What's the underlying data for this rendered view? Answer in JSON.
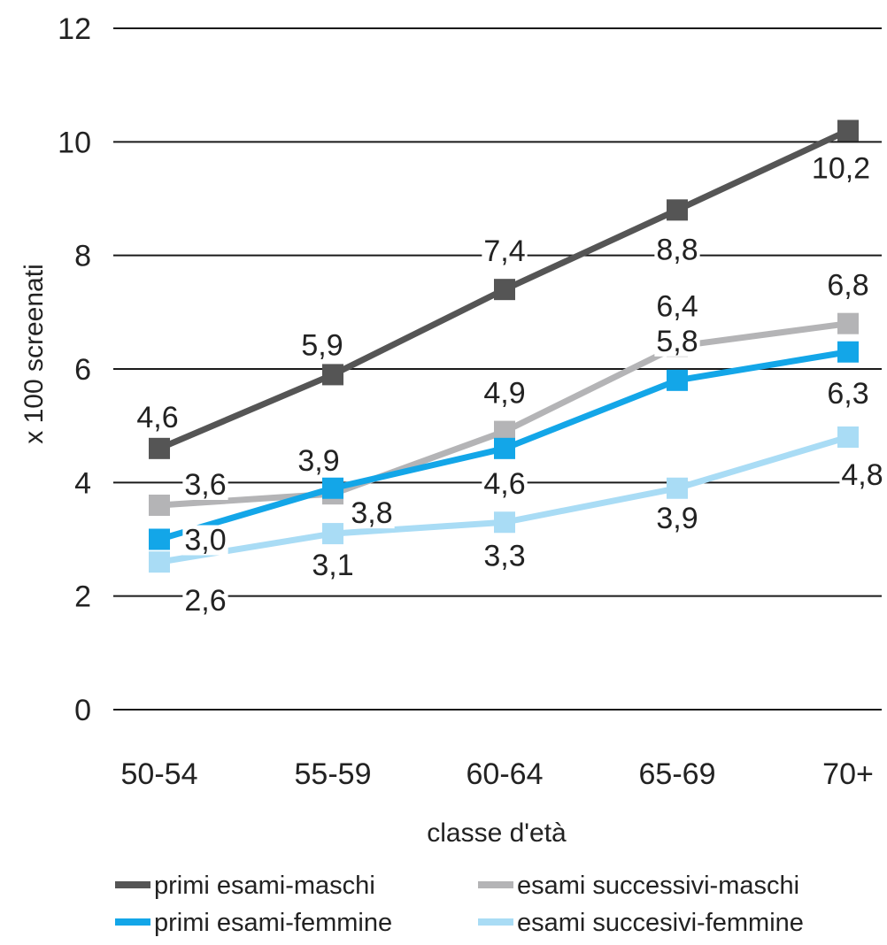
{
  "chart_data": {
    "type": "line",
    "categories": [
      "50-54",
      "55-59",
      "60-64",
      "65-69",
      "70+"
    ],
    "xlabel": "classe d'età",
    "ylabel": "x 100 screenati",
    "ylim": [
      0,
      12
    ],
    "yticks": [
      "0",
      "2",
      "4",
      "6",
      "8",
      "10",
      "12"
    ],
    "grid": "horizontal",
    "legend_position": "bottom",
    "series": [
      {
        "name": "primi esami-maschi",
        "color": "#555555",
        "values": [
          4.6,
          5.9,
          7.4,
          8.8,
          10.2
        ],
        "labels": [
          "4,6",
          "5,9",
          "7,4",
          "8,8",
          "10,2"
        ]
      },
      {
        "name": "esami successivi-maschi",
        "color": "#b4b4b6",
        "values": [
          3.6,
          3.8,
          4.9,
          6.4,
          6.8
        ],
        "labels": [
          "3,6",
          "3,8",
          "4,9",
          "6,4",
          "6,8"
        ]
      },
      {
        "name": "primi esami-femmine",
        "color": "#13a6e8",
        "values": [
          3.0,
          3.9,
          4.6,
          5.8,
          6.3
        ],
        "labels": [
          "3,0",
          "3,9",
          "4,6",
          "5,8",
          "6,3"
        ]
      },
      {
        "name": "esami succesivi-femmine",
        "color": "#a9dcf5",
        "values": [
          2.6,
          3.1,
          3.3,
          3.9,
          4.8
        ],
        "labels": [
          "2,6",
          "3,1",
          "3,3",
          "3,9",
          "4,8"
        ]
      }
    ]
  }
}
